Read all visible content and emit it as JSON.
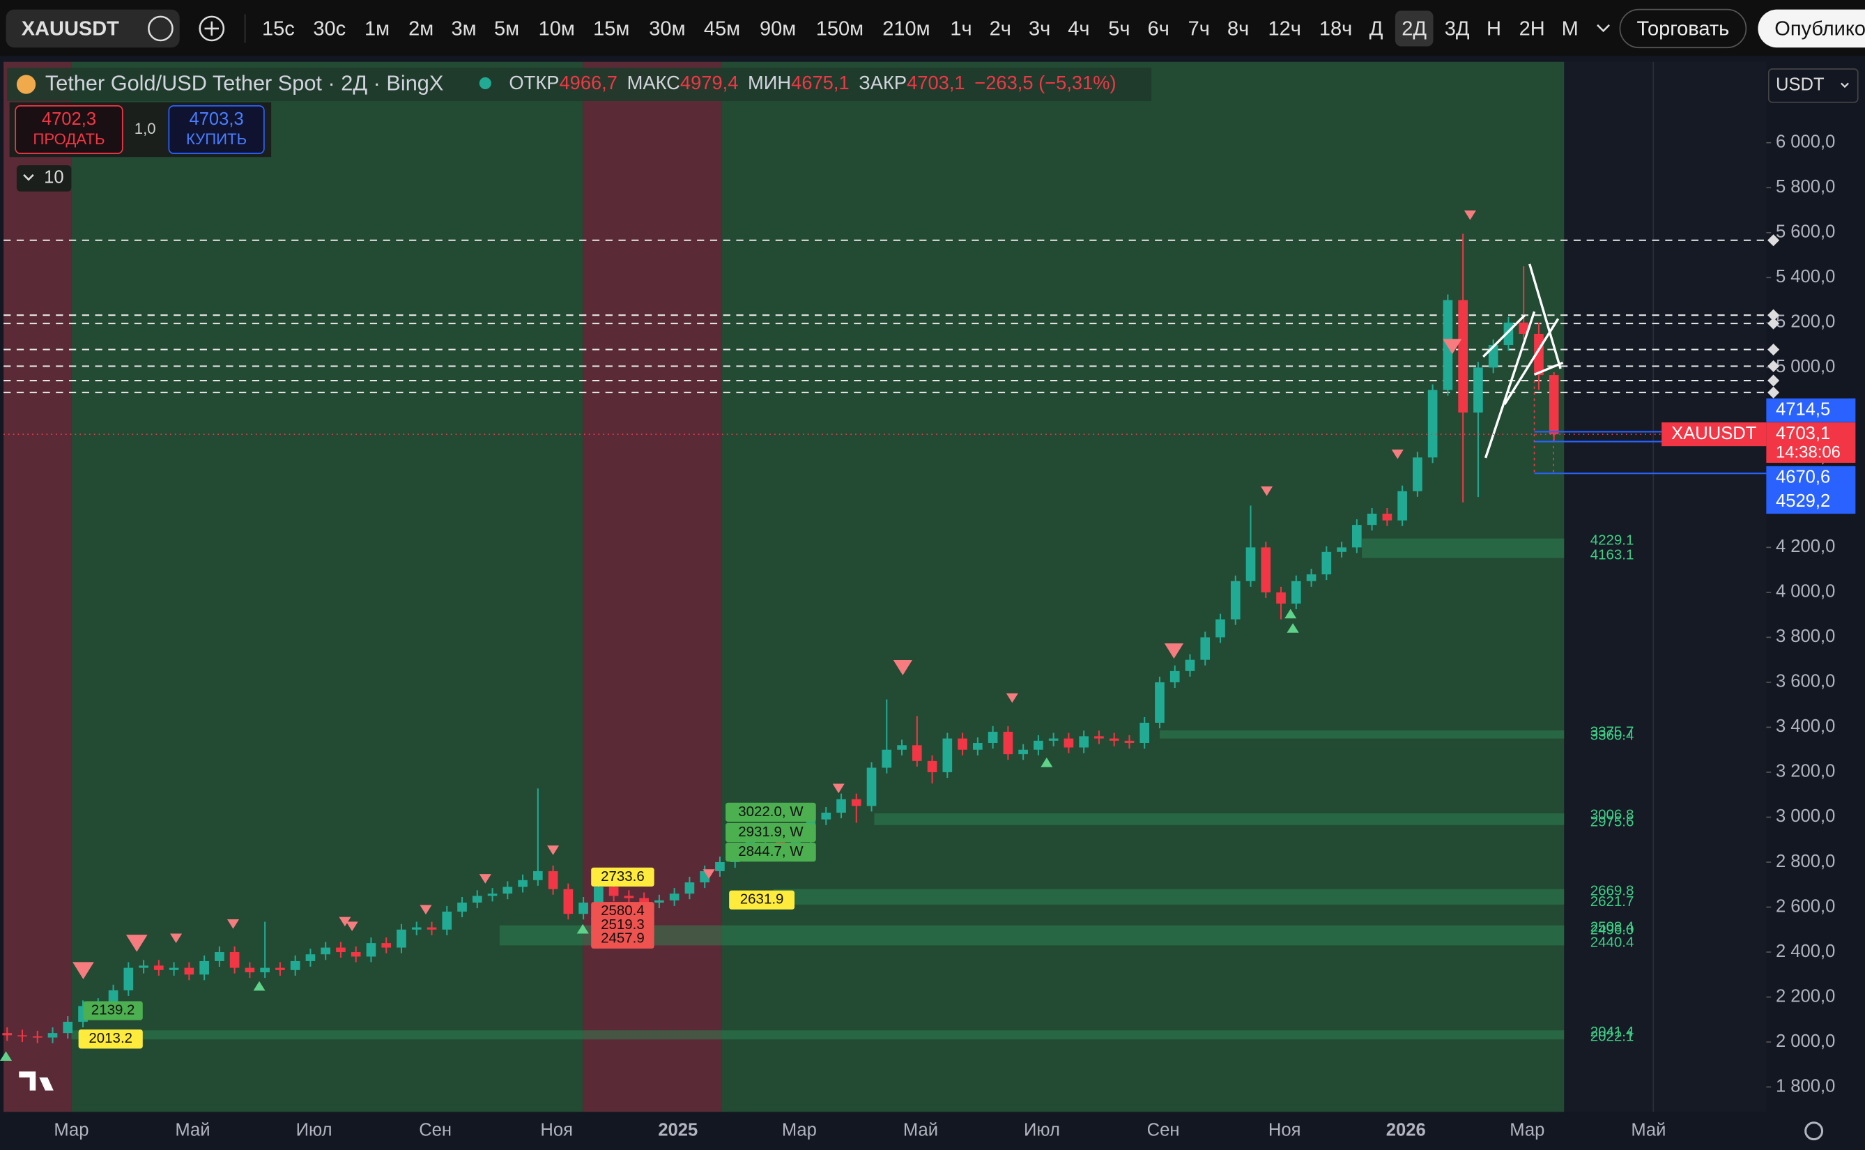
{
  "toolbar": {
    "symbol": "XAUUSDT",
    "intervals": [
      "15с",
      "30с",
      "1м",
      "2м",
      "3м",
      "5м",
      "10м",
      "15м",
      "30м",
      "45м",
      "90м",
      "150м",
      "210м",
      "1ч",
      "2ч",
      "3ч",
      "4ч",
      "5ч",
      "6ч",
      "7ч",
      "8ч",
      "12ч",
      "18ч",
      "Д",
      "2Д",
      "3Д",
      "Н",
      "2Н",
      "М"
    ],
    "active_interval": "2Д",
    "trade_button": "Торговать",
    "publish_button": "Опублико"
  },
  "header": {
    "title": "Tether Gold/USD Tether Spot · 2Д · BingX",
    "ohlc": [
      {
        "label": "ОТКР",
        "value": "4966,7"
      },
      {
        "label": "МАКС",
        "value": "4979,4"
      },
      {
        "label": "МИН",
        "value": "4675,1"
      },
      {
        "label": "ЗАКР",
        "value": "4703,1"
      }
    ],
    "change": "−263,5 (−5,31%)"
  },
  "trade_panel": {
    "sell_price": "4702,3",
    "sell_label": "ПРОДАТЬ",
    "quantity": "1,0",
    "buy_price": "4703,3",
    "buy_label": "КУПИТЬ",
    "indicators": "10"
  },
  "currency": "USDT",
  "chart_data": {
    "type": "candlestick",
    "up_color": "#22ab94",
    "down_color": "#f23645",
    "categories": [
      null,
      null,
      null,
      null,
      "Мар",
      null,
      null,
      null,
      null,
      null,
      null,
      null,
      "Май",
      null,
      null,
      null,
      null,
      null,
      null,
      null,
      "Июл",
      null,
      null,
      null,
      null,
      null,
      null,
      null,
      "Сен",
      null,
      null,
      null,
      null,
      null,
      null,
      null,
      "Ноя",
      null,
      null,
      null,
      null,
      null,
      null,
      null,
      "2025",
      null,
      null,
      null,
      null,
      null,
      null,
      null,
      "Мар",
      null,
      null,
      null,
      null,
      null,
      null,
      null,
      "Май",
      null,
      null,
      null,
      null,
      null,
      null,
      null,
      "Июл",
      null,
      null,
      null,
      null,
      null,
      null,
      null,
      "Сен",
      null,
      null,
      null,
      null,
      null,
      null,
      null,
      "Ноя",
      null,
      null,
      null,
      null,
      null,
      null,
      null,
      "2026",
      null,
      null,
      null,
      null,
      null,
      null,
      null,
      "Мар",
      null,
      null,
      null,
      null,
      null,
      null,
      null,
      "Май"
    ],
    "open": [
      2040,
      2030,
      2025,
      2020,
      2040,
      2090,
      2160,
      2170,
      2230,
      2330,
      2340,
      2320,
      2330,
      2300,
      2360,
      2400,
      2330,
      2310,
      2330,
      2320,
      2360,
      2390,
      2420,
      2400,
      2380,
      2440,
      2420,
      2500,
      2510,
      2500,
      2580,
      2620,
      2650,
      2660,
      2690,
      2720,
      2760,
      2680,
      2570,
      2620,
      2690,
      2650,
      2640,
      2620,
      2630,
      2660,
      2710,
      2760,
      2800,
      2860,
      2900,
      2920,
      2880,
      2910,
      2990,
      3020,
      3080,
      3050,
      3220,
      3300,
      3320,
      3250,
      3200,
      3350,
      3300,
      3330,
      3380,
      3280,
      3300,
      3340,
      3350,
      3310,
      3360,
      3350,
      3340,
      3330,
      3420,
      3600,
      3650,
      3700,
      3800,
      3880,
      4050,
      4200,
      4000,
      3950,
      4050,
      4080,
      4180,
      4200,
      4300,
      4350,
      4320,
      4450,
      4600,
      4900,
      5300,
      4800,
      5000,
      5100,
      5200,
      5150,
      4966.7,
      null,
      null,
      null,
      null,
      null,
      null
    ],
    "high": [
      2065,
      2055,
      2050,
      2065,
      2115,
      2185,
      2195,
      2255,
      2355,
      2365,
      2365,
      2355,
      2355,
      2385,
      2425,
      2425,
      2355,
      2535,
      2355,
      2385,
      2415,
      2445,
      2445,
      2425,
      2465,
      2465,
      2525,
      2535,
      2535,
      2605,
      2645,
      2675,
      2685,
      2715,
      2745,
      3128,
      2785,
      2705,
      2645,
      2715,
      2715,
      2675,
      2665,
      2655,
      2685,
      2735,
      2785,
      2825,
      2885,
      2925,
      2945,
      2945,
      2935,
      3015,
      3045,
      3105,
      3105,
      3245,
      3524,
      3345,
      3450,
      3275,
      3375,
      3375,
      3355,
      3405,
      3405,
      3325,
      3365,
      3375,
      3375,
      3385,
      3385,
      3375,
      3365,
      3445,
      3625,
      3675,
      3725,
      3825,
      3905,
      4075,
      4386,
      4225,
      4025,
      4075,
      4105,
      4205,
      4225,
      4325,
      4375,
      4375,
      4475,
      4625,
      4925,
      5325,
      5595,
      5025,
      5125,
      5225,
      5450,
      5200,
      4979.4,
      null,
      null,
      null,
      null,
      null,
      null
    ],
    "low": [
      2005,
      2000,
      1995,
      1995,
      2015,
      2065,
      2135,
      2145,
      2205,
      2305,
      2295,
      2295,
      2275,
      2275,
      2335,
      2305,
      2285,
      2285,
      2295,
      2295,
      2335,
      2365,
      2375,
      2355,
      2355,
      2395,
      2395,
      2475,
      2475,
      2475,
      2555,
      2595,
      2625,
      2635,
      2665,
      2695,
      2655,
      2545,
      2545,
      2595,
      2625,
      2615,
      2595,
      2595,
      2605,
      2635,
      2685,
      2735,
      2775,
      2835,
      2875,
      2855,
      2855,
      2885,
      2965,
      2995,
      2975,
      3025,
      3195,
      3275,
      3225,
      3150,
      3175,
      3275,
      3275,
      3305,
      3255,
      3255,
      3275,
      3315,
      3285,
      3285,
      3325,
      3315,
      3305,
      3305,
      3395,
      3575,
      3625,
      3675,
      3775,
      3855,
      4025,
      3975,
      3880,
      3925,
      4025,
      4055,
      4155,
      4175,
      4275,
      4295,
      4295,
      4425,
      4575,
      4875,
      4400,
      4424,
      4975,
      5075,
      5125,
      4900,
      4675.1,
      null,
      null,
      null,
      null,
      null,
      null
    ],
    "close": [
      2030,
      2025,
      2020,
      2040,
      2090,
      2160,
      2170,
      2230,
      2330,
      2340,
      2320,
      2330,
      2300,
      2360,
      2400,
      2330,
      2310,
      2330,
      2320,
      2360,
      2390,
      2420,
      2400,
      2380,
      2440,
      2420,
      2500,
      2510,
      2500,
      2580,
      2620,
      2650,
      2660,
      2690,
      2720,
      2760,
      2680,
      2570,
      2620,
      2690,
      2650,
      2640,
      2620,
      2630,
      2660,
      2710,
      2760,
      2800,
      2860,
      2900,
      2920,
      2880,
      2910,
      2990,
      3020,
      3080,
      3050,
      3220,
      3300,
      3320,
      3250,
      3200,
      3350,
      3300,
      3330,
      3380,
      3280,
      3300,
      3340,
      3350,
      3310,
      3360,
      3350,
      3340,
      3330,
      3420,
      3600,
      3650,
      3700,
      3800,
      3880,
      4050,
      4200,
      4000,
      3950,
      4050,
      4080,
      4180,
      4200,
      4300,
      4350,
      4320,
      4450,
      4600,
      4900,
      5300,
      4800,
      5000,
      5100,
      5200,
      5150,
      4966.7,
      4703.1,
      null,
      null,
      null,
      null,
      null,
      null
    ],
    "ylim": [
      1800,
      6000
    ],
    "yticks": [
      {
        "value": 1800,
        "label": "1 800,0"
      },
      {
        "value": 2000,
        "label": "2 000,0"
      },
      {
        "value": 2200,
        "label": "2 200,0"
      },
      {
        "value": 2400,
        "label": "2 400,0"
      },
      {
        "value": 2600,
        "label": "2 600,0"
      },
      {
        "value": 2800,
        "label": "2 800,0"
      },
      {
        "value": 3000,
        "label": "3 000,0"
      },
      {
        "value": 3200,
        "label": "3 200,0"
      },
      {
        "value": 3400,
        "label": "3 400,0"
      },
      {
        "value": 3600,
        "label": "3 600,0"
      },
      {
        "value": 3800,
        "label": "3 800,0"
      },
      {
        "value": 4000,
        "label": "4 000,0"
      },
      {
        "value": 4200,
        "label": "4 200,0"
      },
      {
        "value": 4400,
        "label": "4 400,0"
      },
      {
        "value": 4600,
        "label": "4 600,0"
      },
      {
        "value": 4800,
        "label": "4 800,0"
      },
      {
        "value": 5000,
        "label": "5 000,0"
      },
      {
        "value": 5200,
        "label": "5 200,0"
      },
      {
        "value": 5400,
        "label": "5 400,0"
      },
      {
        "value": 5600,
        "label": "5 600,0"
      },
      {
        "value": 5800,
        "label": "5 800,0"
      },
      {
        "value": 6000,
        "label": "6 000,0"
      }
    ],
    "dashed_levels": [
      5566,
      5233,
      5196,
      5080,
      5006,
      4942,
      4889
    ],
    "level_zones": [
      [
        4229.1,
        4163.1
      ],
      [
        3375.7,
        3360.4
      ],
      [
        3006.8,
        2975.6
      ],
      [
        2669.8,
        2621.7
      ],
      [
        2508.4,
        {
          "value": 2496,
          "label": "2496.0"
        },
        2440.4
      ],
      [
        2041.4,
        2022.1
      ]
    ],
    "annotations": [
      {
        "value": 2139.2,
        "label": "2139.2",
        "color": "#4caf50"
      },
      {
        "value": 2013.2,
        "label": "2013.2",
        "color": "#ffeb3b"
      },
      {
        "value": 2733.6,
        "label": "2733.6",
        "color": "#ffeb3b"
      },
      {
        "value": 2580.4,
        "label": "2580.4",
        "color": "#ef5350"
      },
      {
        "value": 2519.3,
        "label": "2519.3",
        "color": "#ef5350"
      },
      {
        "value": 2457.9,
        "label": "2457.9",
        "color": "#ef5350"
      },
      {
        "value": 3022.0,
        "label": "3022.0, W",
        "color": "#4caf50"
      },
      {
        "value": 2931.9,
        "label": "2931.9, W",
        "color": "#4caf50"
      },
      {
        "value": 2844.7,
        "label": "2844.7, W",
        "color": "#4caf50"
      },
      {
        "value": 2631.9,
        "label": "2631.9",
        "color": "#ffeb3b"
      }
    ],
    "order_lines": [
      {
        "value": 4714.5,
        "label": "4714,5"
      },
      {
        "value": 4670.6,
        "label": "4670,6"
      },
      {
        "value": 4529.2,
        "label": "4529,2"
      }
    ],
    "last_price": {
      "symbol": "XAUUSDT",
      "value": 4703.1,
      "label": "4703,1",
      "countdown": "14:38:06"
    }
  }
}
